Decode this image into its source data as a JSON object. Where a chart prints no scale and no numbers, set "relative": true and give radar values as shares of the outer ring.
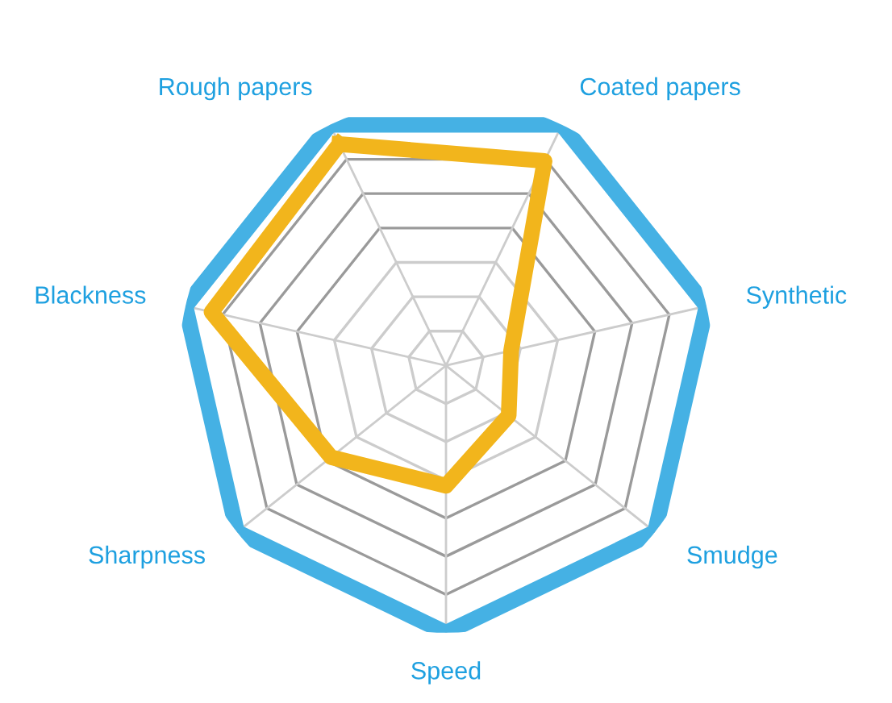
{
  "chart_data": {
    "type": "radar",
    "relative": true,
    "grid": true,
    "categories": [
      "Rough papers",
      "Coated papers",
      "Synthetic",
      "Smudge",
      "Speed",
      "Sharpness",
      "Blackness"
    ],
    "series": [
      {
        "color": "#f2b51c",
        "values": [
          0.92,
          0.85,
          0.25,
          0.3,
          0.45,
          0.55,
          0.9
        ]
      }
    ]
  }
}
